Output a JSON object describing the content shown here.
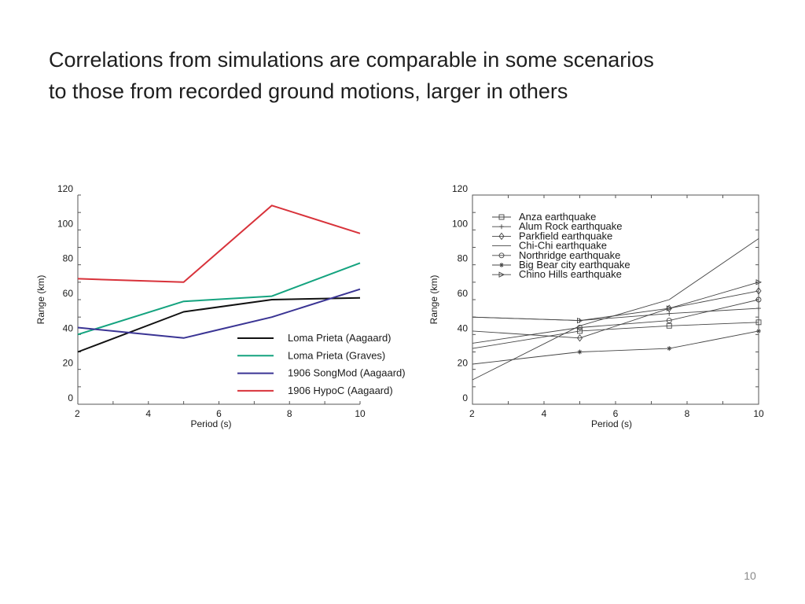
{
  "slide": {
    "title_line1": "Correlations from simulations are comparable in some scenarios",
    "title_line2": "to those from recorded ground motions, larger in others",
    "page_number": "10"
  },
  "chart_data": [
    {
      "type": "line",
      "title": "",
      "xlabel": "Period (s)",
      "ylabel": "Range (km)",
      "xlim": [
        2,
        10
      ],
      "ylim": [
        0,
        120
      ],
      "xticks": [
        2,
        4,
        6,
        8,
        10
      ],
      "yticks": [
        0,
        20,
        40,
        60,
        80,
        100,
        120
      ],
      "grid": false,
      "legend_position": "bottom-right",
      "series": [
        {
          "name": "Loma Prieta (Aagaard)",
          "color": "#111111",
          "x": [
            2,
            5,
            7.5,
            10
          ],
          "y": [
            30,
            53,
            60,
            61
          ]
        },
        {
          "name": "Loma Prieta (Graves)",
          "color": "#14a37f",
          "x": [
            2,
            5,
            7.5,
            10
          ],
          "y": [
            40,
            59,
            62,
            81
          ]
        },
        {
          "name": "1906 SongMod (Aagaard)",
          "color": "#3a3494",
          "x": [
            2,
            5,
            7.5,
            10
          ],
          "y": [
            44,
            38,
            50,
            66
          ]
        },
        {
          "name": "1906 HypoC (Aagaard)",
          "color": "#d8323a",
          "x": [
            2,
            5,
            7.5,
            10
          ],
          "y": [
            72,
            70,
            114,
            98
          ]
        }
      ]
    },
    {
      "type": "line",
      "title": "",
      "xlabel": "Period (s)",
      "ylabel": "Range (km)",
      "xlim": [
        2,
        10
      ],
      "ylim": [
        0,
        120
      ],
      "xticks": [
        2,
        4,
        6,
        8,
        10
      ],
      "yticks": [
        0,
        20,
        40,
        60,
        80,
        100,
        120
      ],
      "grid": false,
      "legend_position": "top-left",
      "series": [
        {
          "name": "Anza earthquake",
          "marker": "square",
          "color": "#444444",
          "x": [
            2,
            5,
            7.5,
            10
          ],
          "y": [
            32,
            42,
            45,
            47
          ]
        },
        {
          "name": "Alum Rock earthquake",
          "marker": "plus",
          "color": "#444444",
          "x": [
            2,
            5,
            7.5,
            10
          ],
          "y": [
            50,
            48,
            52,
            55
          ]
        },
        {
          "name": "Parkfield earthquake",
          "marker": "diamond",
          "color": "#444444",
          "x": [
            2,
            5,
            7.5,
            10
          ],
          "y": [
            42,
            38,
            55,
            65
          ]
        },
        {
          "name": "Chi-Chi earthquake",
          "marker": "none",
          "color": "#444444",
          "x": [
            2,
            5,
            7.5,
            10
          ],
          "y": [
            14,
            45,
            60,
            95
          ]
        },
        {
          "name": "Northridge earthquake",
          "marker": "circle",
          "color": "#444444",
          "x": [
            2,
            5,
            7.5,
            10
          ],
          "y": [
            35,
            44,
            48,
            60
          ]
        },
        {
          "name": "Big Bear city earthquake",
          "marker": "star",
          "color": "#444444",
          "x": [
            2,
            5,
            7.5,
            10
          ],
          "y": [
            23,
            30,
            32,
            42
          ]
        },
        {
          "name": "Chino Hills earthquake",
          "marker": "triangle-right",
          "color": "#444444",
          "x": [
            2,
            5,
            7.5,
            10
          ],
          "y": [
            50,
            48,
            55,
            70
          ]
        }
      ]
    }
  ]
}
